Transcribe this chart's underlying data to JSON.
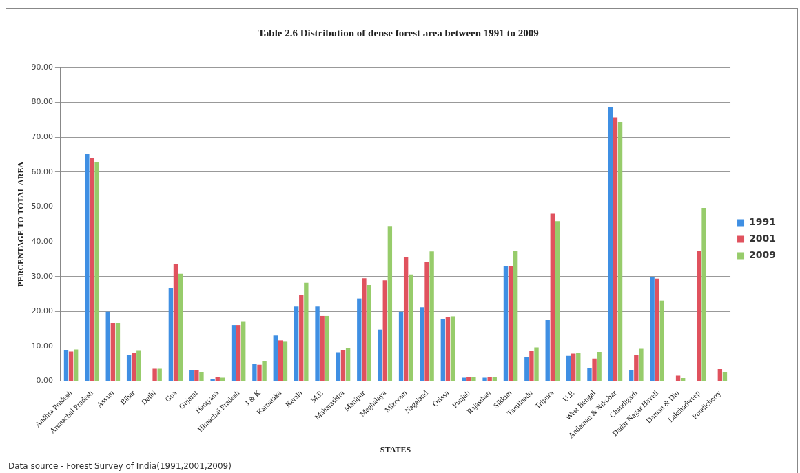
{
  "chart_data": {
    "type": "bar",
    "title": "Table 2.6 Distribution of dense forest area between 1991 to 2009",
    "xlabel": "STATES",
    "ylabel": "PERCENTAGE TO TOTAL AREA",
    "categories": [
      "Andhra Pradesh",
      "Arunachal Pradesh",
      "Assam",
      "Bihar",
      "Delhi",
      "Goa",
      "Gujarat",
      "Harayana",
      "Himachal Pradesh",
      "J & K",
      "Karnataka",
      "Kerala",
      "M.P.",
      "Maharashtra",
      "Manipur",
      "Meghalaya",
      "Mizoram",
      "Nagaland",
      "Orissa",
      "Punjab",
      "Rajasthan",
      "Sikkim",
      "Tamilnadu",
      "Tripura",
      "U.P.",
      "West Bengal",
      "Andaman & Nikobar",
      "Chandigarh",
      "Dadar Nagar Haveli",
      "Daman & Diu",
      "Lakshadweep",
      "Pondicherry"
    ],
    "series": [
      {
        "name": "1991",
        "color": "#3f8fe3",
        "values": [
          8.8,
          65.2,
          19.9,
          7.5,
          null,
          26.7,
          3.3,
          0.6,
          16.1,
          5.0,
          13.1,
          21.4,
          21.4,
          8.3,
          23.7,
          14.8,
          19.9,
          21.2,
          17.7,
          1.0,
          1.0,
          32.9,
          7.0,
          17.5,
          7.3,
          3.8,
          78.6,
          3.1,
          29.9,
          null,
          null,
          null
        ]
      },
      {
        "name": "2001",
        "color": "#e0525e",
        "values": [
          8.5,
          63.9,
          16.7,
          8.2,
          3.6,
          33.6,
          3.3,
          1.1,
          16.1,
          4.7,
          11.7,
          24.7,
          18.7,
          8.8,
          29.5,
          28.9,
          35.7,
          34.3,
          18.3,
          1.3,
          1.3,
          32.9,
          8.6,
          48.0,
          7.9,
          6.5,
          75.7,
          7.6,
          29.4,
          1.6,
          37.4,
          3.5
        ]
      },
      {
        "name": "2009",
        "color": "#97cc6b",
        "values": [
          9.1,
          62.8,
          16.7,
          8.7,
          3.6,
          30.8,
          2.7,
          1.0,
          17.2,
          5.8,
          11.3,
          28.2,
          18.7,
          9.4,
          27.6,
          44.5,
          30.6,
          37.2,
          18.6,
          1.3,
          1.3,
          37.4,
          9.7,
          45.9,
          8.1,
          8.4,
          74.4,
          9.3,
          23.1,
          0.9,
          49.7,
          2.5
        ]
      }
    ],
    "ylim": [
      0,
      90
    ],
    "yticks": [
      {
        "value": 0,
        "label": "0.00"
      },
      {
        "value": 10,
        "label": "10.00"
      },
      {
        "value": 20,
        "label": "20.00"
      },
      {
        "value": 30,
        "label": "30.00"
      },
      {
        "value": 40,
        "label": "40.00"
      },
      {
        "value": 50,
        "label": "50.00"
      },
      {
        "value": 60,
        "label": "60.00"
      },
      {
        "value": 70,
        "label": "70.00"
      },
      {
        "value": 80,
        "label": "80.00"
      },
      {
        "value": 90,
        "label": "90.00"
      }
    ],
    "grid": "y",
    "legend": "right",
    "annotations": [
      "Data source - Forest Survey of India(1991,2001,2009)"
    ]
  }
}
